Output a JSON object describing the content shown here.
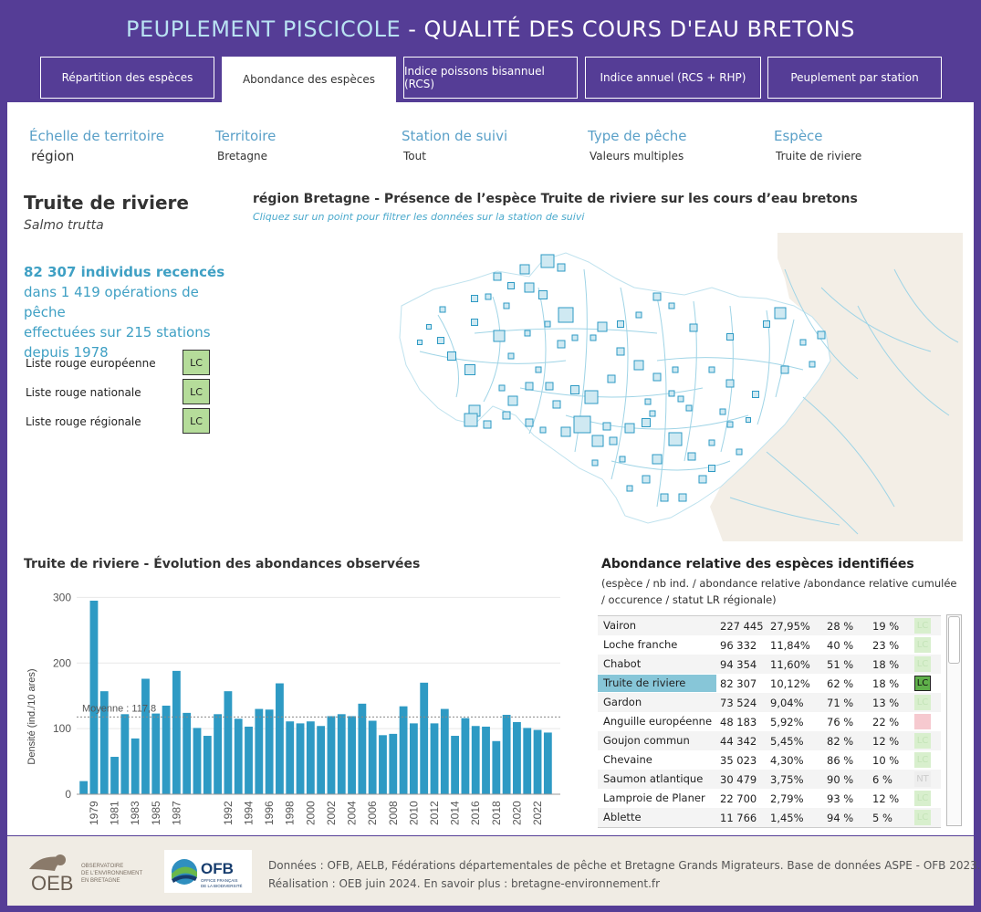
{
  "header": {
    "title_part1": "PEUPLEMENT PISCICOLE",
    "title_part2": " - QUALITÉ DES COURS D'EAU BRETONS"
  },
  "tabs": [
    {
      "label": "Répartition des espèces"
    },
    {
      "label": "Abondance des espèces"
    },
    {
      "label": "Indice poissons bisannuel (RCS)"
    },
    {
      "label": "Indice annuel (RCS + RHP)"
    },
    {
      "label": "Peuplement par station"
    }
  ],
  "filters": [
    {
      "label": "Échelle de territoire",
      "value": "région"
    },
    {
      "label": "Territoire",
      "value": "Bretagne"
    },
    {
      "label": "Station de suivi",
      "value": "Tout"
    },
    {
      "label": "Type de pêche",
      "value": "Valeurs multiples"
    },
    {
      "label": "Espèce",
      "value": "Truite de riviere"
    }
  ],
  "species": {
    "name": "Truite de riviere",
    "latin": "Salmo trutta",
    "count_line": "82 307 individus recencés",
    "detail_line1": "dans 1 419 opérations de pêche",
    "detail_line2": "effectuées sur 215 stations",
    "detail_line3": "depuis 1978"
  },
  "red_lists": [
    {
      "label": "Liste rouge européenne",
      "status": "LC"
    },
    {
      "label": "Liste rouge nationale",
      "status": "LC"
    },
    {
      "label": "Liste rouge régionale",
      "status": "LC"
    }
  ],
  "map": {
    "title": "région Bretagne - Présence de l’espèce Truite de riviere sur les cours d’eau bretons",
    "subtitle": "Cliquez sur un point pour filtrer les données sur la station de suivi"
  },
  "chart_data": {
    "type": "bar",
    "title": "Truite de riviere - Évolution des abondances observées",
    "ylabel": "Densité (ind./10 ares)",
    "xlabel": "",
    "ylim": [
      0,
      320
    ],
    "yticks": [
      0,
      100,
      200,
      300
    ],
    "categories": [
      "1978",
      "1979",
      "1980",
      "1981",
      "1982",
      "1983",
      "1984",
      "1985",
      "1986",
      "1987",
      "1988",
      "1989",
      "1990",
      "1991",
      "1992",
      "1993",
      "1994",
      "1995",
      "1996",
      "1997",
      "1998",
      "1999",
      "2000",
      "2001",
      "2002",
      "2003",
      "2004",
      "2005",
      "2006",
      "2007",
      "2008",
      "2009",
      "2010",
      "2011",
      "2012",
      "2013",
      "2014",
      "2015",
      "2016",
      "2017",
      "2018",
      "2019",
      "2020",
      "2021",
      "2022",
      "2023"
    ],
    "values": [
      20,
      295,
      157,
      57,
      122,
      85,
      176,
      123,
      135,
      188,
      124,
      101,
      89,
      122,
      157,
      115,
      103,
      130,
      129,
      169,
      111,
      108,
      111,
      104,
      119,
      122,
      119,
      138,
      112,
      90,
      92,
      134,
      108,
      170,
      108,
      130,
      89,
      116,
      104,
      103,
      81,
      121,
      110,
      101,
      98,
      94
    ],
    "tick_labels": [
      "1979",
      "1981",
      "1983",
      "1985",
      "1987",
      "1992",
      "1994",
      "1996",
      "1998",
      "2000",
      "2002",
      "2004",
      "2006",
      "2008",
      "2010",
      "2012",
      "2014",
      "2016",
      "2018",
      "2020",
      "2022"
    ],
    "reference_line": {
      "label": "Moyenne : 117,8",
      "value": 117.8
    },
    "color": "#2e9ac4"
  },
  "abundance_table": {
    "title": "Abondance relative des espèces identifiées",
    "subtitle": "(espèce / nb ind. / abondance relative /abondance relative cumulée / occurence /  statut LR régionale)",
    "rows": [
      {
        "species": "Vairon",
        "nb": "227 445",
        "rel": "27,95%",
        "cum": "28 %",
        "occ": "19 %",
        "lr": "LC"
      },
      {
        "species": "Loche franche",
        "nb": "96 332",
        "rel": "11,84%",
        "cum": "40 %",
        "occ": "23 %",
        "lr": "LC"
      },
      {
        "species": "Chabot",
        "nb": "94 354",
        "rel": "11,60%",
        "cum": "51 %",
        "occ": "18 %",
        "lr": "LC"
      },
      {
        "species": "Truite de riviere",
        "nb": "82 307",
        "rel": "10,12%",
        "cum": "62 %",
        "occ": "18 %",
        "lr": "LC"
      },
      {
        "species": "Gardon",
        "nb": "73 524",
        "rel": "9,04%",
        "cum": "71 %",
        "occ": "13 %",
        "lr": "LC"
      },
      {
        "species": "Anguille européenne",
        "nb": "48 183",
        "rel": "5,92%",
        "cum": "76 %",
        "occ": "22 %",
        "lr": "CR"
      },
      {
        "species": "Goujon commun",
        "nb": "44 342",
        "rel": "5,45%",
        "cum": "82 %",
        "occ": "12 %",
        "lr": "LC"
      },
      {
        "species": "Chevaine",
        "nb": "35 023",
        "rel": "4,30%",
        "cum": "86 %",
        "occ": "10 %",
        "lr": "LC"
      },
      {
        "species": "Saumon atlantique",
        "nb": "30 479",
        "rel": "3,75%",
        "cum": "90 %",
        "occ": "6 %",
        "lr": "NT"
      },
      {
        "species": "Lamproie de Planer",
        "nb": "22 700",
        "rel": "2,79%",
        "cum": "93 %",
        "occ": "12 %",
        "lr": "LC"
      },
      {
        "species": "Ablette",
        "nb": "11 766",
        "rel": "1,45%",
        "cum": "94 %",
        "occ": "5 %",
        "lr": "LC"
      }
    ]
  },
  "footer": {
    "line1": "Données : OFB, AELB, Fédérations départementales de pêche et Bretagne Grands Migrateurs. Base de données ASPE - OFB 2023.",
    "line2": "Réalisation : OEB juin 2024. En savoir plus : bretagne-environnement.fr",
    "oeb_logo_text": "OEB",
    "oeb_sub1": "OBSERVATOIRE",
    "oeb_sub2": "DE L'ENVIRONNEMENT",
    "oeb_sub3": "EN BRETAGNE",
    "ofb_logo_text": "OFB",
    "ofb_sub1": "OFFICE FRANÇAIS",
    "ofb_sub2": "DE LA BIODIVERSITÉ"
  }
}
